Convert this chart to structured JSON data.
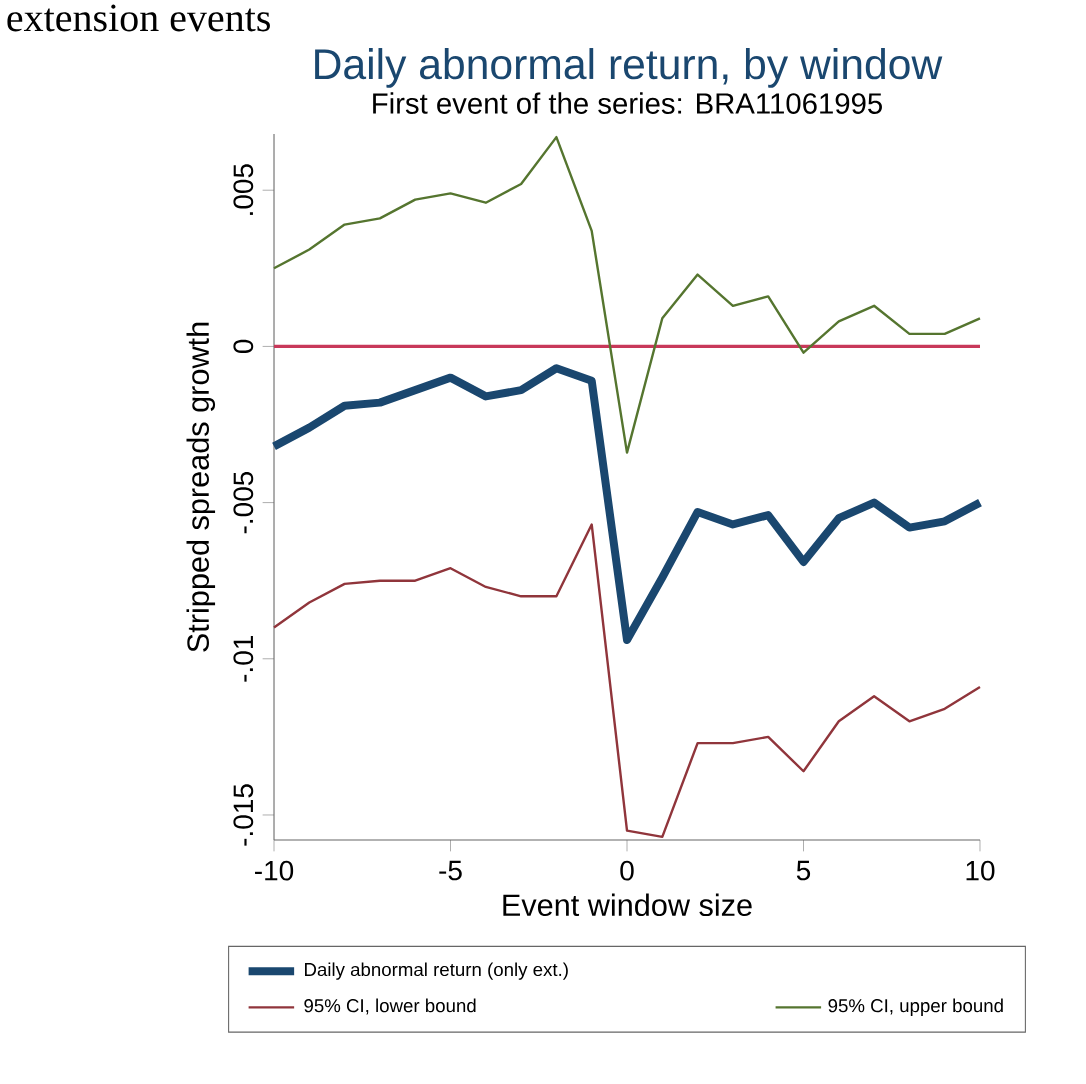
{
  "chart_data": {
    "type": "line",
    "title": "Daily abnormal return, by window",
    "subtitle": "First event of the series: BRA11061995",
    "xlabel": "Event window size",
    "ylabel": "Stripped spreads growth",
    "annotations": [
      "extension events"
    ],
    "x": [
      -10,
      -9,
      -8,
      -7,
      -6,
      -5,
      -4,
      -3,
      -2,
      -1,
      0,
      1,
      2,
      3,
      4,
      5,
      6,
      7,
      8,
      9,
      10
    ],
    "series": [
      {
        "name": "Daily abnormal return (only ext.)",
        "color": "#1a476f",
        "values": [
          -0.0032,
          -0.0026,
          -0.0019,
          -0.0018,
          -0.0014,
          -0.001,
          -0.0016,
          -0.0014,
          -0.0007,
          -0.0011,
          -0.0094,
          -0.0074,
          -0.0053,
          -0.0057,
          -0.0054,
          -0.0069,
          -0.0055,
          -0.005,
          -0.0058,
          -0.0056,
          -0.005
        ]
      },
      {
        "name": "95% CI, lower bound",
        "color": "#90353b",
        "values": [
          -0.009,
          -0.0082,
          -0.0076,
          -0.0075,
          -0.0075,
          -0.0071,
          -0.0077,
          -0.008,
          -0.008,
          -0.0057,
          -0.0155,
          -0.0157,
          -0.0127,
          -0.0127,
          -0.0125,
          -0.0136,
          -0.012,
          -0.0112,
          -0.012,
          -0.0116,
          -0.0109
        ]
      },
      {
        "name": "95% CI, upper bound",
        "color": "#55752f",
        "values": [
          0.0025,
          0.0031,
          0.0039,
          0.0041,
          0.0047,
          0.0049,
          0.0046,
          0.0052,
          0.0067,
          0.0037,
          -0.0034,
          0.0009,
          0.0023,
          0.0013,
          0.0016,
          -0.0002,
          0.0008,
          0.0013,
          0.0004,
          0.0004,
          0.0009
        ]
      }
    ],
    "xlim": [
      -10,
      10
    ],
    "ylim": [
      -0.0158,
      0.0068
    ],
    "xticks": [
      -10,
      -5,
      0,
      5,
      10
    ],
    "yticks": [
      {
        "value": 0.005,
        "label": ".005"
      },
      {
        "value": 0,
        "label": "0"
      },
      {
        "value": -0.005,
        "label": "-.005"
      },
      {
        "value": -0.01,
        "label": "-.01"
      },
      {
        "value": -0.015,
        "label": "-.015"
      }
    ],
    "ref_lines": [
      {
        "axis": "y",
        "value": 0,
        "color": "#c8385a"
      }
    ],
    "legend": "bottom",
    "grid": false,
    "marker": "none",
    "line_style": "solid"
  }
}
